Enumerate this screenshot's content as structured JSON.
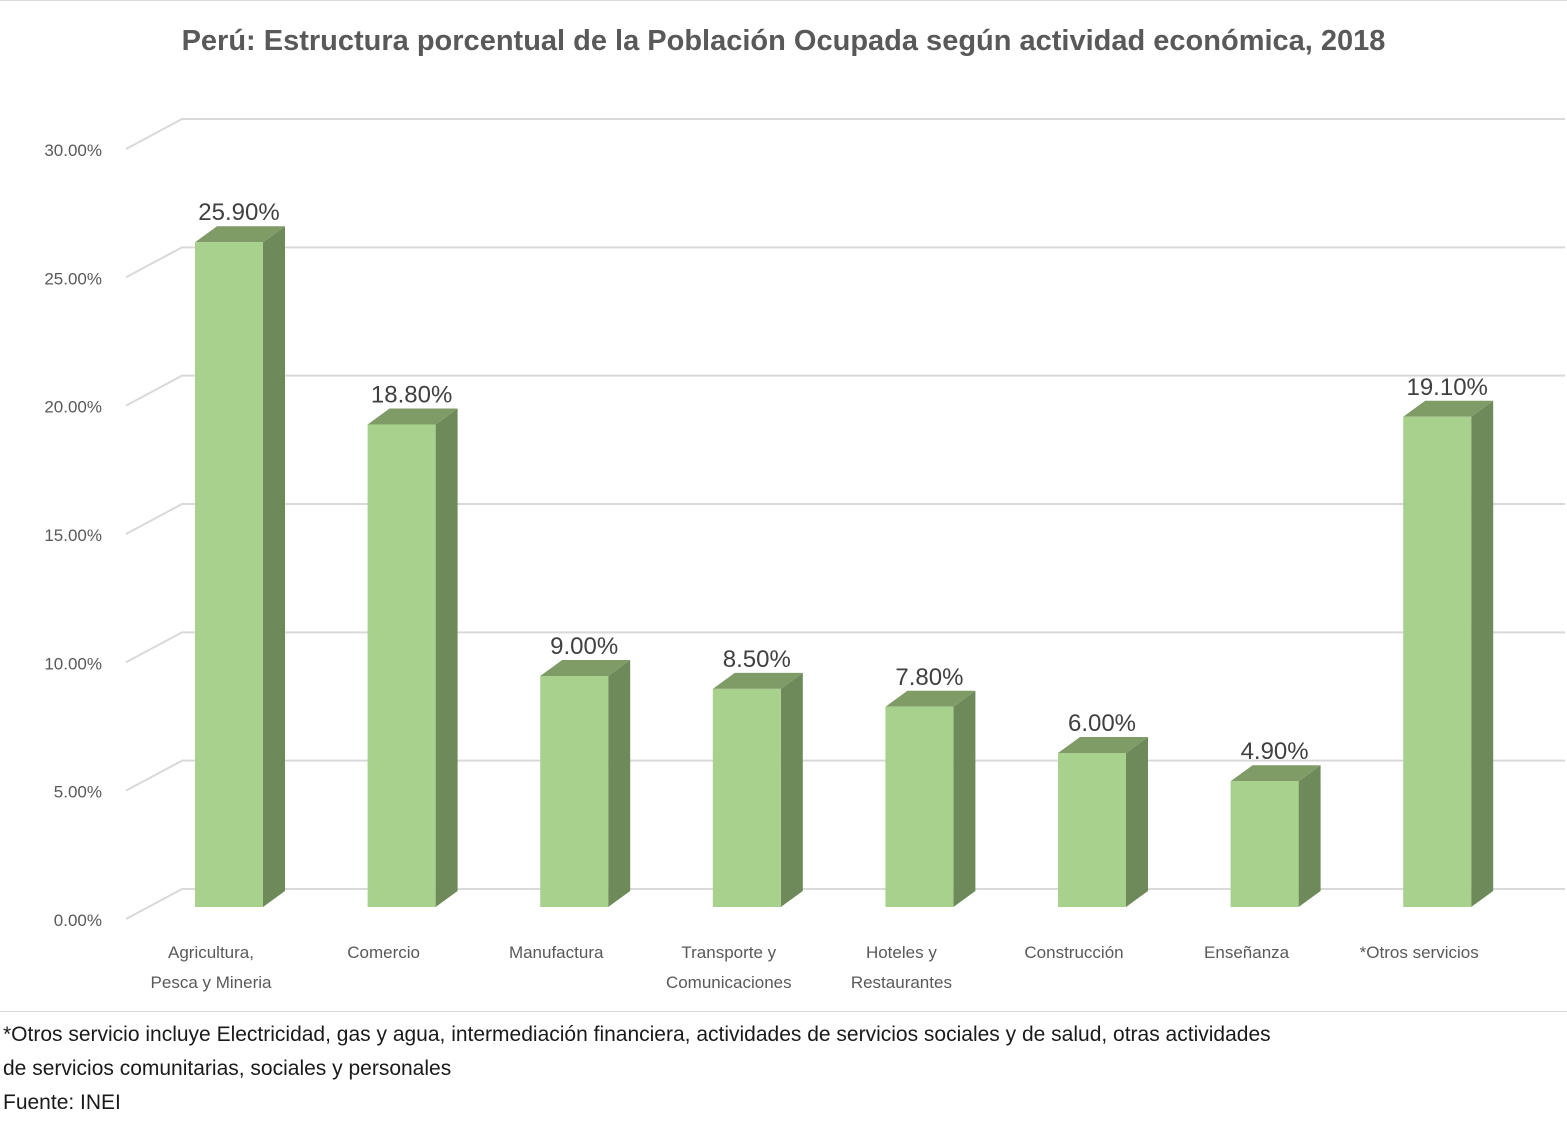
{
  "chart_data": {
    "type": "bar",
    "title": "Perú: Estructura porcentual de la Población Ocupada según actividad económica, 2018",
    "categories": [
      [
        "Agricultura,",
        "Pesca y Mineria"
      ],
      [
        "Comercio"
      ],
      [
        "Manufactura"
      ],
      [
        "Transporte y",
        "Comunicaciones"
      ],
      [
        "Hoteles y",
        "Restaurantes"
      ],
      [
        "Construcción"
      ],
      [
        "Enseñanza"
      ],
      [
        "*Otros servicios"
      ]
    ],
    "values": [
      25.9,
      18.8,
      9.0,
      8.5,
      7.8,
      6.0,
      4.9,
      19.1
    ],
    "value_labels": [
      "25.90%",
      "18.80%",
      "9.00%",
      "8.50%",
      "7.80%",
      "6.00%",
      "4.90%",
      "19.10%"
    ],
    "yticks": [
      0,
      5,
      10,
      15,
      20,
      25,
      30
    ],
    "ytick_labels": [
      "0.00%",
      "5.00%",
      "10.00%",
      "15.00%",
      "20.00%",
      "25.00%",
      "30.00%"
    ],
    "ylim": [
      0,
      30
    ],
    "grid": true,
    "style": "3d-column",
    "colors": {
      "bar_front": "#a9d18e",
      "bar_side": "#6f8a5a",
      "bar_top": "#7f9c67",
      "gridline": "#d9d9d9",
      "label": "#595959"
    }
  },
  "footnote": {
    "line1": "*Otros servicio incluye Electricidad, gas y agua, intermediación financiera, actividades de servicios sociales y de salud, otras actividades",
    "line2": "de servicios comunitarias, sociales y personales",
    "source": "Fuente: INEI"
  }
}
